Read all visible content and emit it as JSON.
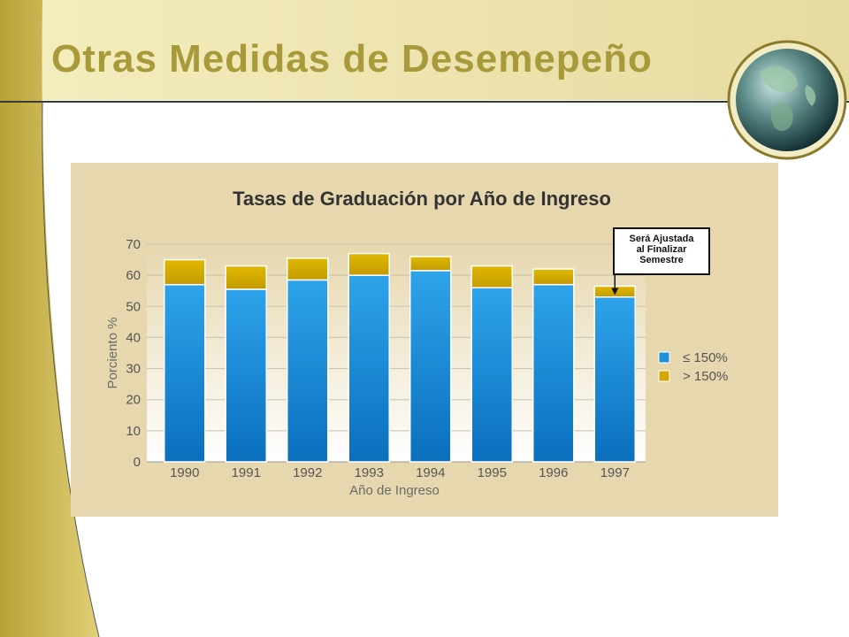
{
  "slide": {
    "title": "Otras Medidas de Desemepeño"
  },
  "colors": {
    "accent": "#a89a3a",
    "panel": "#e6d7ae",
    "below": "#1e8fd8",
    "above": "#d4a800"
  },
  "chart_data": {
    "type": "bar",
    "stacked": true,
    "title": "Tasas de Graduación por Año de Ingreso",
    "xlabel": "Año de Ingreso",
    "ylabel": "Porciento %",
    "ylim": [
      0,
      70
    ],
    "yticks": [
      "0",
      "10",
      "20",
      "30",
      "40",
      "50",
      "60",
      "70"
    ],
    "categories": [
      "1990",
      "1991",
      "1992",
      "1993",
      "1994",
      "1995",
      "1996",
      "1997"
    ],
    "series": [
      {
        "name": "≤ 150%",
        "color": "#1e8fd8",
        "values": [
          57,
          55.5,
          58.5,
          60,
          61.5,
          56,
          57,
          53
        ]
      },
      {
        "name": "> 150%",
        "color": "#d4a800",
        "values": [
          8,
          7.5,
          7,
          7,
          4.5,
          7,
          5,
          3.5
        ]
      }
    ],
    "grid": true,
    "legend": "right",
    "annotation": {
      "lines": [
        "Será Ajustada",
        "al Finalizar",
        "Semestre"
      ],
      "target": "1997"
    }
  }
}
